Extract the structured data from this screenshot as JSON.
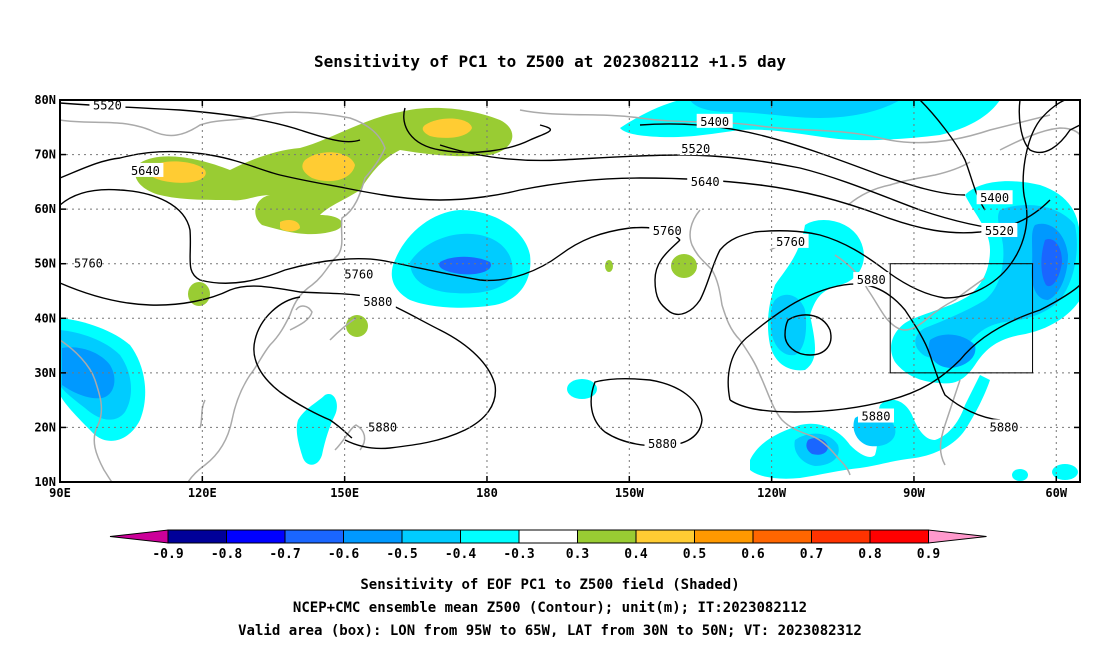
{
  "title": "Sensitivity of PC1 to Z500 at 2023082112 +1.5 day",
  "map": {
    "lat_ticks": [
      "80N",
      "70N",
      "60N",
      "50N",
      "40N",
      "30N",
      "20N",
      "10N"
    ],
    "lon_ticks": [
      "90E",
      "120E",
      "150E",
      "180",
      "150W",
      "120W",
      "90W",
      "60W"
    ],
    "contour_labels": [
      {
        "text": "5520",
        "lon": 100,
        "lat": 79
      },
      {
        "text": "5640",
        "lon": 108,
        "lat": 67
      },
      {
        "text": "5760",
        "lon": 96,
        "lat": 50
      },
      {
        "text": "5760",
        "lon": 153,
        "lat": 48
      },
      {
        "text": "5880",
        "lon": 157,
        "lat": 43
      },
      {
        "text": "5880",
        "lon": 158,
        "lat": 20
      },
      {
        "text": "5400",
        "lon": 228,
        "lat": 76
      },
      {
        "text": "5520",
        "lon": 224,
        "lat": 71
      },
      {
        "text": "5640",
        "lon": 226,
        "lat": 65
      },
      {
        "text": "5760",
        "lon": 218,
        "lat": 56
      },
      {
        "text": "5760",
        "lon": 244,
        "lat": 54
      },
      {
        "text": "5880",
        "lon": 261,
        "lat": 47
      },
      {
        "text": "5400",
        "lon": 287,
        "lat": 62
      },
      {
        "text": "5520",
        "lon": 288,
        "lat": 56
      },
      {
        "text": "5880",
        "lon": 217,
        "lat": 17
      },
      {
        "text": "5880",
        "lon": 262,
        "lat": 22
      },
      {
        "text": "5880",
        "lon": 289,
        "lat": 20
      }
    ],
    "box": {
      "lon_west": 265,
      "lon_east": 295,
      "lat_south": 30,
      "lat_north": 50
    }
  },
  "colorbar": {
    "labels": [
      "-0.9",
      "-0.8",
      "-0.7",
      "-0.6",
      "-0.5",
      "-0.4",
      "-0.3",
      "0.3",
      "0.4",
      "0.5",
      "0.6",
      "0.7",
      "0.8",
      "0.9"
    ],
    "colors": [
      "#000099",
      "#0000ff",
      "#1a66ff",
      "#0099ff",
      "#00ccff",
      "#00ffff",
      "#ffffff",
      "#99cc33",
      "#ffcc33",
      "#ff9900",
      "#ff6600",
      "#ff3300",
      "#ff0000"
    ],
    "low_end_color": "#cc0099",
    "high_end_color": "#ff99cc"
  },
  "captions": [
    "Sensitivity of EOF PC1 to Z500 field (Shaded)",
    "NCEP+CMC ensemble mean Z500 (Contour); unit(m); IT:2023082112",
    "Valid area (box): LON from 95W to 65W, LAT from 30N to 50N; VT: 2023082312"
  ]
}
